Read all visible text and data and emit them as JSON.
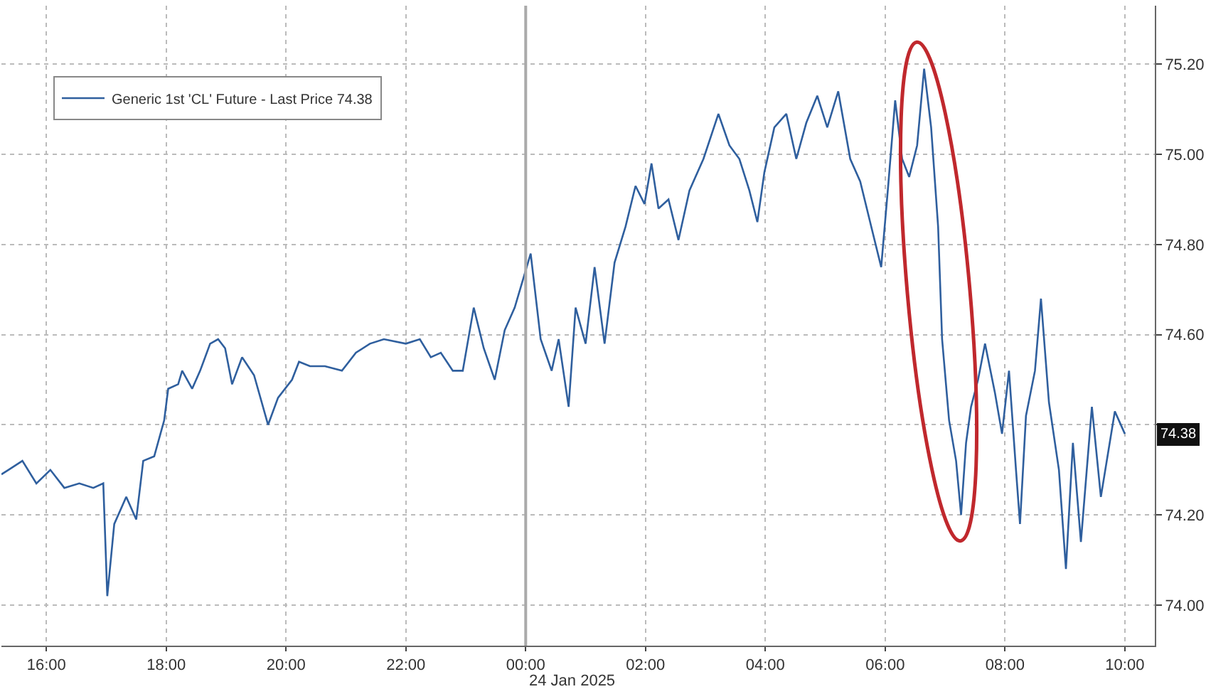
{
  "chart_data": {
    "type": "line",
    "legend": "top left",
    "grid": true,
    "marker": "none",
    "line_style": "solid",
    "xlim": [
      "2025-01-23T15:15",
      "2025-01-24T10:30"
    ],
    "xticks": [
      {
        "value": "2025-01-23T16:00",
        "label": "16:00"
      },
      {
        "value": "2025-01-23T18:00",
        "label": "18:00"
      },
      {
        "value": "2025-01-23T20:00",
        "label": "20:00"
      },
      {
        "value": "2025-01-23T22:00",
        "label": "22:00"
      },
      {
        "value": "2025-01-24T00:00",
        "label": "00:00"
      },
      {
        "value": "2025-01-24T02:00",
        "label": "02:00"
      },
      {
        "value": "2025-01-24T04:00",
        "label": "04:00"
      },
      {
        "value": "2025-01-24T06:00",
        "label": "06:00"
      },
      {
        "value": "2025-01-24T08:00",
        "label": "08:00"
      },
      {
        "value": "2025-01-24T10:00",
        "label": "10:00"
      }
    ],
    "ylim": [
      73.91,
      75.33
    ],
    "yticks": [
      {
        "value": 74,
        "label": "74.00"
      },
      {
        "value": 74.2,
        "label": "74.20"
      },
      {
        "value": 74.4,
        "label": null
      },
      {
        "value": 74.6,
        "label": "74.60"
      },
      {
        "value": 74.8,
        "label": "74.80"
      },
      {
        "value": 75,
        "label": "75.00"
      },
      {
        "value": 75.2,
        "label": "75.20"
      }
    ],
    "ref_lines": [
      {
        "axis": "x",
        "value": "2025-01-24T00:00",
        "label": "24 Jan 2025",
        "color": "#aaaaaa"
      }
    ],
    "annotations": [
      {
        "text": "74.38",
        "x": "2025-01-24T10:00",
        "y": 74.38
      }
    ],
    "x": [
      "2025-01-23T15:15",
      "2025-01-23T15:22",
      "2025-01-23T15:36",
      "2025-01-23T15:50",
      "2025-01-23T16:04",
      "2025-01-23T16:18",
      "2025-01-23T16:33",
      "2025-01-23T16:47",
      "2025-01-23T16:57",
      "2025-01-23T17:01",
      "2025-01-23T17:08",
      "2025-01-23T17:20",
      "2025-01-23T17:30",
      "2025-01-23T17:37",
      "2025-01-23T17:48",
      "2025-01-23T17:58",
      "2025-01-23T18:02",
      "2025-01-23T18:12",
      "2025-01-23T18:16",
      "2025-01-23T18:26",
      "2025-01-23T18:34",
      "2025-01-23T18:44",
      "2025-01-23T18:52",
      "2025-01-23T18:59",
      "2025-01-23T19:06",
      "2025-01-23T19:16",
      "2025-01-23T19:28",
      "2025-01-23T19:42",
      "2025-01-23T19:52",
      "2025-01-23T20:06",
      "2025-01-23T20:13",
      "2025-01-23T20:24",
      "2025-01-23T20:39",
      "2025-01-23T20:56",
      "2025-01-23T21:10",
      "2025-01-23T21:24",
      "2025-01-23T21:38",
      "2025-01-23T22:00",
      "2025-01-23T22:14",
      "2025-01-23T22:25",
      "2025-01-23T22:35",
      "2025-01-23T22:47",
      "2025-01-23T22:57",
      "2025-01-23T23:08",
      "2025-01-23T23:18",
      "2025-01-23T23:29",
      "2025-01-23T23:39",
      "2025-01-23T23:49",
      "2025-01-24T00:05",
      "2025-01-24T00:15",
      "2025-01-24T00:26",
      "2025-01-24T00:33",
      "2025-01-24T00:43",
      "2025-01-24T00:50",
      "2025-01-24T01:00",
      "2025-01-24T01:09",
      "2025-01-24T01:19",
      "2025-01-24T01:29",
      "2025-01-24T01:40",
      "2025-01-24T01:50",
      "2025-01-24T01:59",
      "2025-01-24T02:06",
      "2025-01-24T02:13",
      "2025-01-24T02:23",
      "2025-01-24T02:33",
      "2025-01-24T02:44",
      "2025-01-24T02:58",
      "2025-01-24T03:13",
      "2025-01-24T03:24",
      "2025-01-24T03:34",
      "2025-01-24T03:44",
      "2025-01-24T03:52",
      "2025-01-24T03:59",
      "2025-01-24T04:09",
      "2025-01-24T04:21",
      "2025-01-24T04:31",
      "2025-01-24T04:41",
      "2025-01-24T04:52",
      "2025-01-24T05:02",
      "2025-01-24T05:13",
      "2025-01-24T05:25",
      "2025-01-24T05:35",
      "2025-01-24T05:46",
      "2025-01-24T05:56",
      "2025-01-24T06:03",
      "2025-01-24T06:10",
      "2025-01-24T06:17",
      "2025-01-24T06:24",
      "2025-01-24T06:32",
      "2025-01-24T06:39",
      "2025-01-24T06:46",
      "2025-01-24T06:53",
      "2025-01-24T06:57",
      "2025-01-24T07:04",
      "2025-01-24T07:11",
      "2025-01-24T07:16",
      "2025-01-24T07:21",
      "2025-01-24T07:26",
      "2025-01-24T07:33",
      "2025-01-24T07:40",
      "2025-01-24T07:50",
      "2025-01-24T07:57",
      "2025-01-24T08:04",
      "2025-01-24T08:11",
      "2025-01-24T08:15",
      "2025-01-24T08:21",
      "2025-01-24T08:30",
      "2025-01-24T08:36",
      "2025-01-24T08:44",
      "2025-01-24T08:54",
      "2025-01-24T09:01",
      "2025-01-24T09:08",
      "2025-01-24T09:16",
      "2025-01-24T09:27",
      "2025-01-24T09:36",
      "2025-01-24T09:50",
      "2025-01-24T10:00"
    ],
    "series": [
      {
        "name": "Generic 1st 'CL' Future - Last Price 74.38",
        "color": "#2f5f9e",
        "values": [
          74.29,
          74.3,
          74.32,
          74.27,
          74.3,
          74.26,
          74.27,
          74.26,
          74.27,
          74.02,
          74.18,
          74.24,
          74.19,
          74.32,
          74.33,
          74.41,
          74.48,
          74.49,
          74.52,
          74.48,
          74.52,
          74.58,
          74.59,
          74.57,
          74.49,
          74.55,
          74.51,
          74.4,
          74.46,
          74.5,
          74.54,
          74.53,
          74.53,
          74.52,
          74.56,
          74.58,
          74.59,
          74.58,
          74.59,
          74.55,
          74.56,
          74.52,
          74.52,
          74.66,
          74.57,
          74.5,
          74.61,
          74.66,
          74.78,
          74.59,
          74.52,
          74.59,
          74.44,
          74.66,
          74.58,
          74.75,
          74.58,
          74.76,
          74.84,
          74.93,
          74.89,
          74.98,
          74.88,
          74.9,
          74.81,
          74.92,
          74.99,
          75.09,
          75.02,
          74.99,
          74.92,
          74.85,
          74.96,
          75.06,
          75.09,
          74.99,
          75.07,
          75.13,
          75.06,
          75.14,
          74.99,
          74.94,
          74.84,
          74.75,
          74.93,
          75.12,
          74.99,
          74.95,
          75.02,
          75.19,
          75.06,
          74.84,
          74.59,
          74.41,
          74.32,
          74.2,
          74.36,
          74.44,
          74.5,
          74.58,
          74.47,
          74.38,
          74.52,
          74.3,
          74.18,
          74.42,
          74.52,
          74.68,
          74.45,
          74.3,
          74.08,
          74.36,
          74.14,
          74.44,
          74.24,
          74.43,
          74.38
        ]
      }
    ]
  }
}
